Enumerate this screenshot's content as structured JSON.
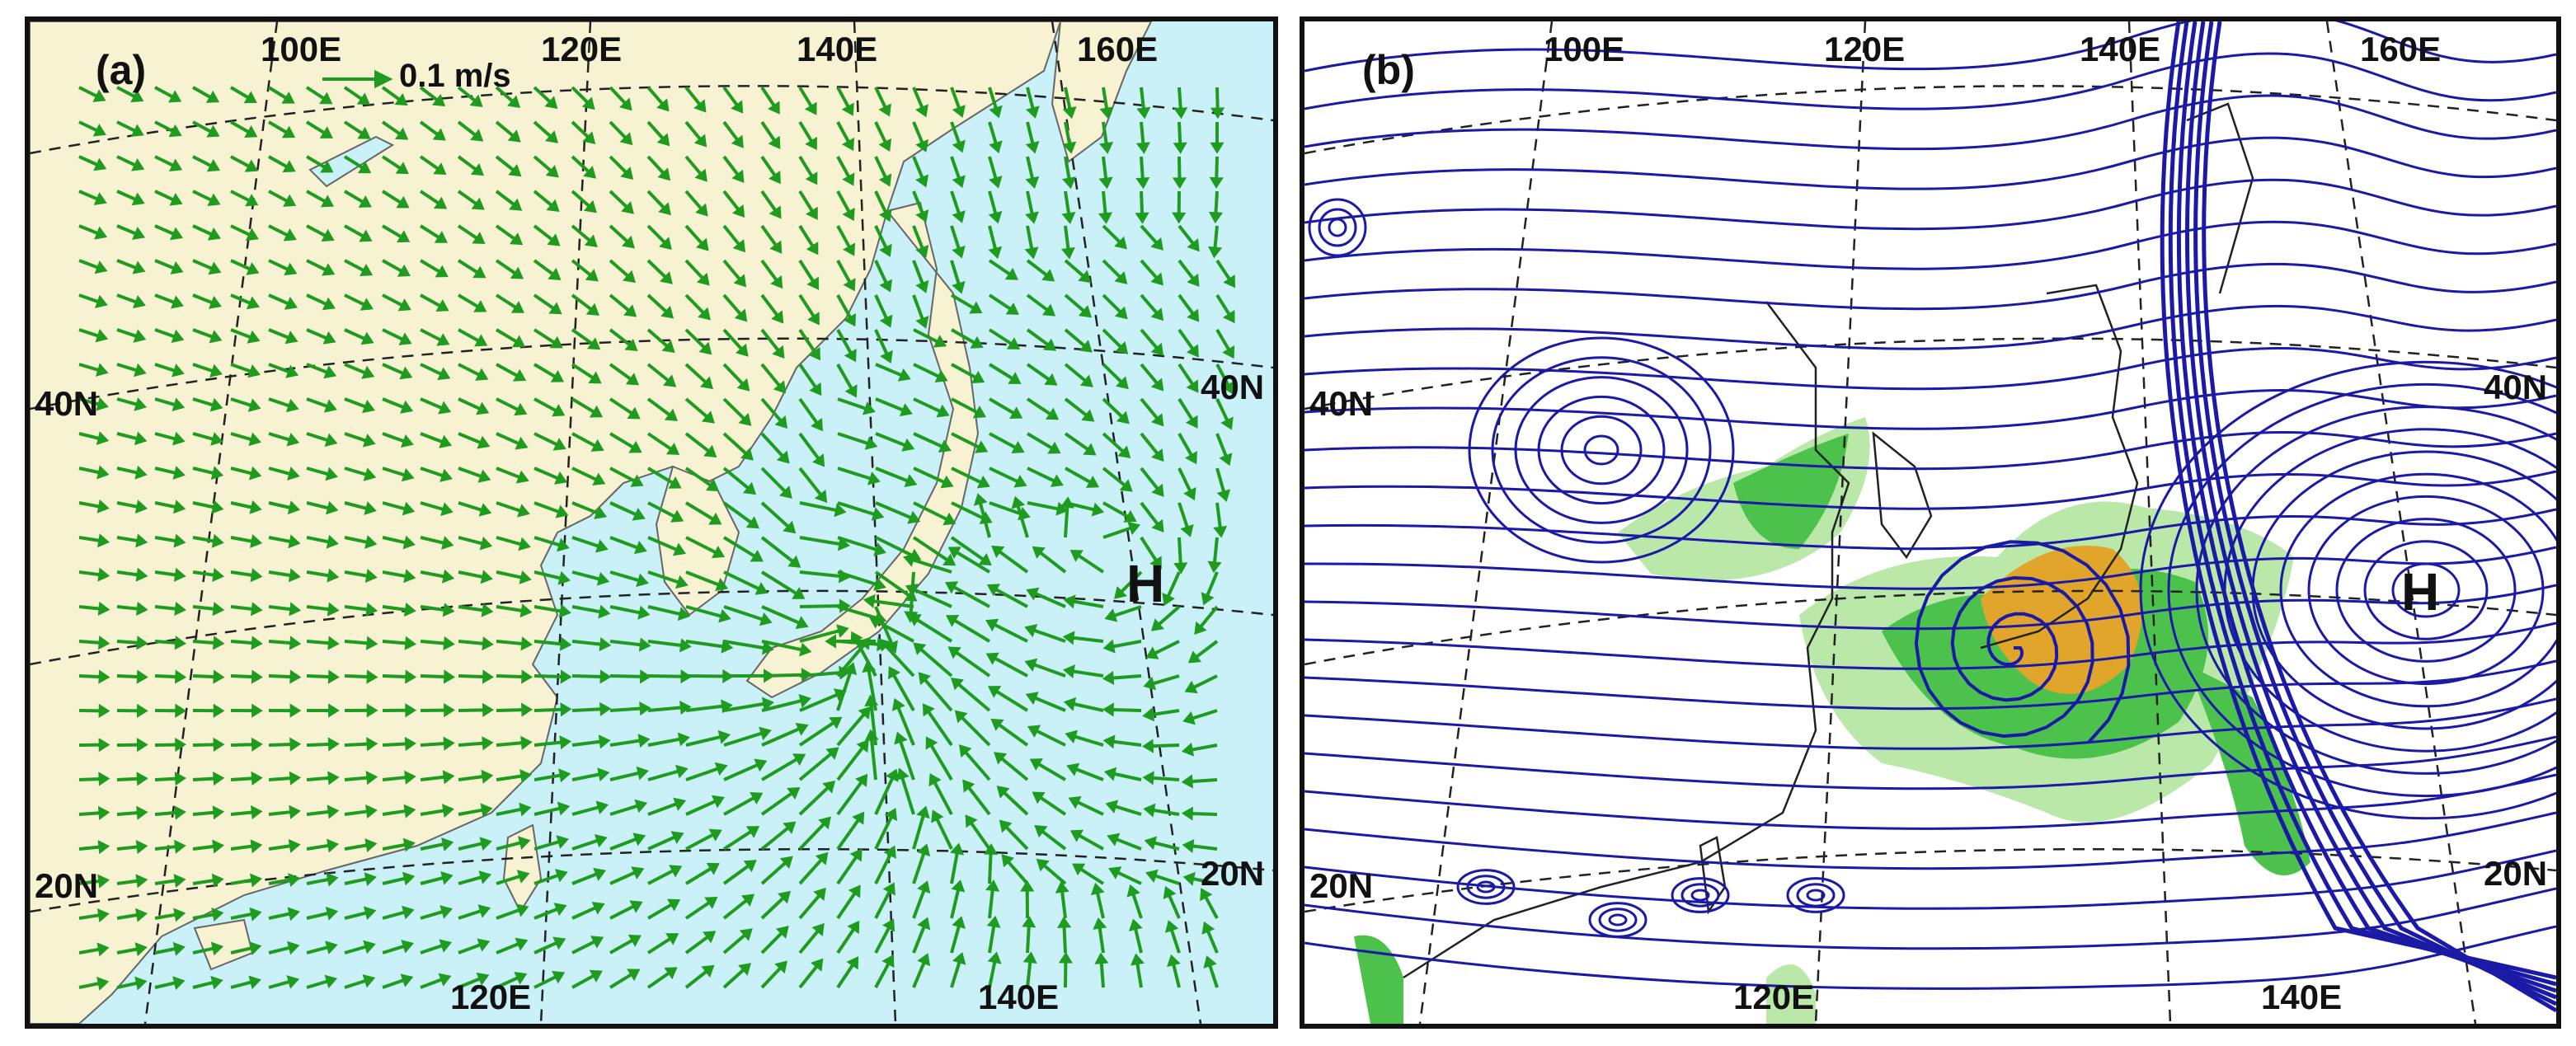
{
  "panel_a": {
    "label": "(a)",
    "scale_text": "0.1 m/s",
    "high_label": "H",
    "lon_ticks_top": [
      "100E",
      "120E",
      "140E",
      "160E"
    ],
    "lon_ticks_bottom": [
      "120E",
      "140E"
    ],
    "lat_ticks_left": [
      "40N",
      "20N"
    ],
    "lat_ticks_right": [
      "40N",
      "20N"
    ],
    "colors": {
      "ocean": "#c9f1f7",
      "land": "#f7f3d2",
      "arrows": "#1f9c1f",
      "grid": "#222222"
    }
  },
  "panel_b": {
    "label": "(b)",
    "high_label": "H",
    "lon_ticks_top": [
      "100E",
      "120E",
      "140E",
      "160E"
    ],
    "lon_ticks_bottom": [
      "120E",
      "140E"
    ],
    "lat_ticks_left": [
      "40N",
      "20N"
    ],
    "lat_ticks_right": [
      "40N",
      "20N"
    ],
    "colors": {
      "streamlines": "#1a1aa6",
      "shade_light": "#b9e8a8",
      "shade_mid": "#4cc24c",
      "shade_core": "#e2a52b"
    }
  }
}
